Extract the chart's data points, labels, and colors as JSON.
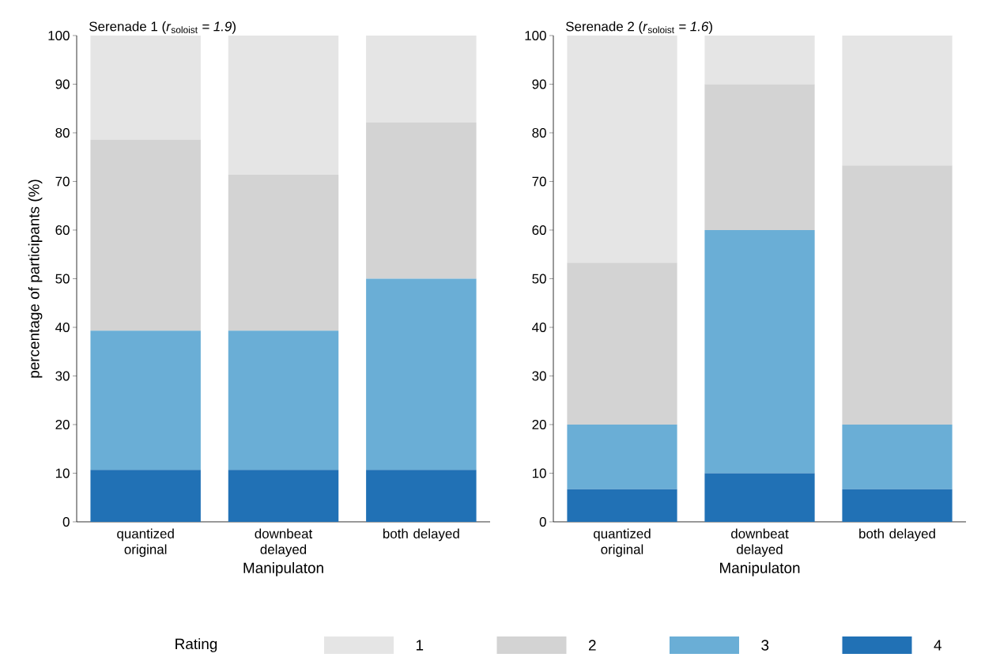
{
  "chart_data": [
    {
      "type": "bar",
      "stacked": true,
      "title": "Serenade 1 (*r*$_{soloist}$ *= 1.9*)",
      "xlabel": "Manipulaton",
      "ylabel": "percentage of participants (%)",
      "legend_title": "Rating",
      "legend": "bottom",
      "categories": [
        "quantized original",
        "downbeat delayed",
        "both delayed"
      ],
      "ylim": [
        0,
        100
      ],
      "yticks": [
        0,
        10,
        20,
        30,
        40,
        50,
        60,
        70,
        80,
        90,
        100
      ],
      "series": [
        {
          "name": "4",
          "color": "#2171b5",
          "values": [
            10.7,
            10.7,
            10.7
          ]
        },
        {
          "name": "3",
          "color": "#6aaed6",
          "values": [
            28.6,
            28.6,
            39.3
          ]
        },
        {
          "name": "2",
          "color": "#d3d3d3",
          "values": [
            39.3,
            32.1,
            32.1
          ]
        },
        {
          "name": "1",
          "color": "#e5e5e5",
          "values": [
            21.4,
            28.6,
            17.9
          ]
        }
      ]
    },
    {
      "type": "bar",
      "stacked": true,
      "title": "Serenade 2 (*r*$_{soloist}$ *= 1.6*)",
      "xlabel": "Manipulaton",
      "categories": [
        "quantized original",
        "downbeat delayed",
        "both delayed"
      ],
      "ylim": [
        0,
        100
      ],
      "yticks": [
        0,
        10,
        20,
        30,
        40,
        50,
        60,
        70,
        80,
        90,
        100
      ],
      "series": [
        {
          "color": "#2171b5",
          "values": [
            6.7,
            10.0,
            6.7
          ]
        },
        {
          "color": "#6aaed6",
          "values": [
            13.3,
            50.0,
            13.3
          ]
        },
        {
          "color": "#d3d3d3",
          "values": [
            33.3,
            30.0,
            53.3
          ]
        },
        {
          "color": "#e5e5e5",
          "values": [
            46.7,
            10.0,
            26.7
          ]
        }
      ]
    }
  ]
}
